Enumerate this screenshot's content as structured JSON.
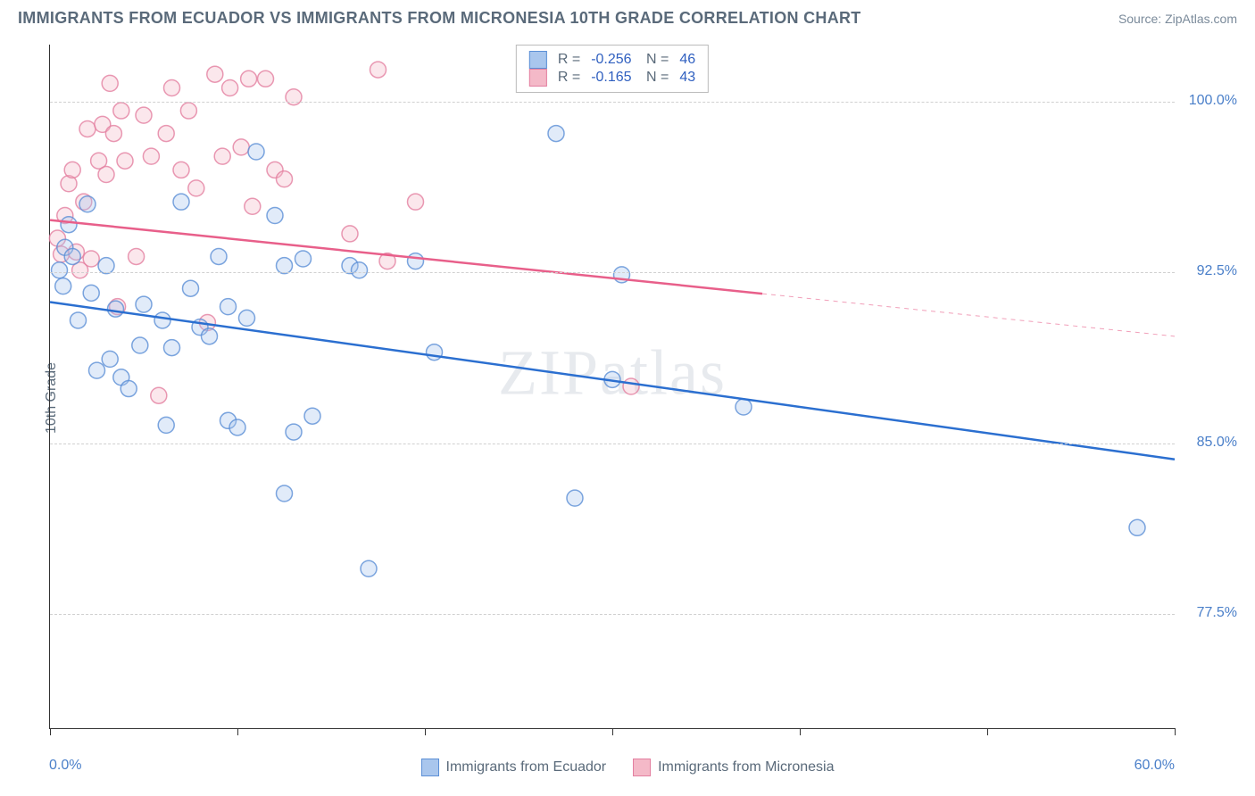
{
  "header": {
    "title": "IMMIGRANTS FROM ECUADOR VS IMMIGRANTS FROM MICRONESIA 10TH GRADE CORRELATION CHART",
    "source": "Source: ZipAtlas.com"
  },
  "chart": {
    "type": "scatter",
    "ylabel": "10th Grade",
    "xlim": [
      0,
      60
    ],
    "ylim": [
      72.5,
      102.5
    ],
    "x_ticks": [
      0,
      10,
      20,
      30,
      40,
      50,
      60
    ],
    "x_tick_labels_shown": {
      "min": "0.0%",
      "max": "60.0%"
    },
    "y_gridlines": [
      77.5,
      85.0,
      92.5,
      100.0
    ],
    "y_tick_labels": [
      "77.5%",
      "85.0%",
      "92.5%",
      "100.0%"
    ],
    "grid_color": "#d0d0d0",
    "background_color": "#ffffff",
    "axis_color": "#333333",
    "marker_radius": 9,
    "marker_fill_opacity": 0.35,
    "marker_stroke_opacity": 0.8,
    "series": [
      {
        "name": "Immigrants from Ecuador",
        "color_fill": "#a9c6ed",
        "color_stroke": "#5b8fd6",
        "line_color": "#2b6fd0",
        "R": "-0.256",
        "N": "46",
        "trend": {
          "x1": 0,
          "y1": 91.2,
          "x2": 60,
          "y2": 84.3,
          "solid_until_x": 60
        },
        "points": [
          [
            0.5,
            92.6
          ],
          [
            0.8,
            93.6
          ],
          [
            0.7,
            91.9
          ],
          [
            1.2,
            93.2
          ],
          [
            1.0,
            94.6
          ],
          [
            2.0,
            95.5
          ],
          [
            1.5,
            90.4
          ],
          [
            2.2,
            91.6
          ],
          [
            3.0,
            92.8
          ],
          [
            3.5,
            90.9
          ],
          [
            3.2,
            88.7
          ],
          [
            4.8,
            89.3
          ],
          [
            2.5,
            88.2
          ],
          [
            3.8,
            87.9
          ],
          [
            5.0,
            91.1
          ],
          [
            4.2,
            87.4
          ],
          [
            6.0,
            90.4
          ],
          [
            6.5,
            89.2
          ],
          [
            7.5,
            91.8
          ],
          [
            8.0,
            90.1
          ],
          [
            8.5,
            89.7
          ],
          [
            7.0,
            95.6
          ],
          [
            9.0,
            93.2
          ],
          [
            9.5,
            86.0
          ],
          [
            9.5,
            91.0
          ],
          [
            10.0,
            85.7
          ],
          [
            10.5,
            90.5
          ],
          [
            11.0,
            97.8
          ],
          [
            12.0,
            95.0
          ],
          [
            12.5,
            92.8
          ],
          [
            12.5,
            82.8
          ],
          [
            13.0,
            85.5
          ],
          [
            13.5,
            93.1
          ],
          [
            14.0,
            86.2
          ],
          [
            16.0,
            92.8
          ],
          [
            16.5,
            92.6
          ],
          [
            17.0,
            79.5
          ],
          [
            19.5,
            93.0
          ],
          [
            20.5,
            89.0
          ],
          [
            27.0,
            98.6
          ],
          [
            28.0,
            82.6
          ],
          [
            30.0,
            87.8
          ],
          [
            30.5,
            92.4
          ],
          [
            37.0,
            86.6
          ],
          [
            58.0,
            81.3
          ],
          [
            6.2,
            85.8
          ]
        ]
      },
      {
        "name": "Immigrants from Micronesia",
        "color_fill": "#f4b9c8",
        "color_stroke": "#e37fa0",
        "line_color": "#e85f8a",
        "R": "-0.165",
        "N": "43",
        "trend": {
          "x1": 0,
          "y1": 94.8,
          "x2": 60,
          "y2": 89.7,
          "solid_until_x": 38
        },
        "points": [
          [
            0.4,
            94.0
          ],
          [
            0.6,
            93.3
          ],
          [
            0.8,
            95.0
          ],
          [
            1.0,
            96.4
          ],
          [
            1.2,
            97.0
          ],
          [
            1.4,
            93.4
          ],
          [
            1.6,
            92.6
          ],
          [
            1.8,
            95.6
          ],
          [
            2.0,
            98.8
          ],
          [
            2.2,
            93.1
          ],
          [
            2.6,
            97.4
          ],
          [
            2.8,
            99.0
          ],
          [
            3.0,
            96.8
          ],
          [
            3.2,
            100.8
          ],
          [
            3.4,
            98.6
          ],
          [
            3.6,
            91.0
          ],
          [
            3.8,
            99.6
          ],
          [
            4.0,
            97.4
          ],
          [
            4.6,
            93.2
          ],
          [
            5.0,
            99.4
          ],
          [
            5.4,
            97.6
          ],
          [
            5.8,
            87.1
          ],
          [
            6.2,
            98.6
          ],
          [
            6.5,
            100.6
          ],
          [
            7.0,
            97.0
          ],
          [
            7.4,
            99.6
          ],
          [
            7.8,
            96.2
          ],
          [
            8.4,
            90.3
          ],
          [
            8.8,
            101.2
          ],
          [
            9.2,
            97.6
          ],
          [
            9.6,
            100.6
          ],
          [
            10.2,
            98.0
          ],
          [
            10.6,
            101.0
          ],
          [
            10.8,
            95.4
          ],
          [
            11.5,
            101.0
          ],
          [
            12.0,
            97.0
          ],
          [
            12.5,
            96.6
          ],
          [
            13.0,
            100.2
          ],
          [
            16.0,
            94.2
          ],
          [
            17.5,
            101.4
          ],
          [
            18.0,
            93.0
          ],
          [
            19.5,
            95.6
          ],
          [
            31.0,
            87.5
          ]
        ]
      }
    ],
    "legend_bottom": [
      {
        "label": "Immigrants from Ecuador",
        "fill": "#a9c6ed",
        "stroke": "#5b8fd6"
      },
      {
        "label": "Immigrants from Micronesia",
        "fill": "#f4b9c8",
        "stroke": "#e37fa0"
      }
    ],
    "watermark": "ZIPatlas"
  }
}
